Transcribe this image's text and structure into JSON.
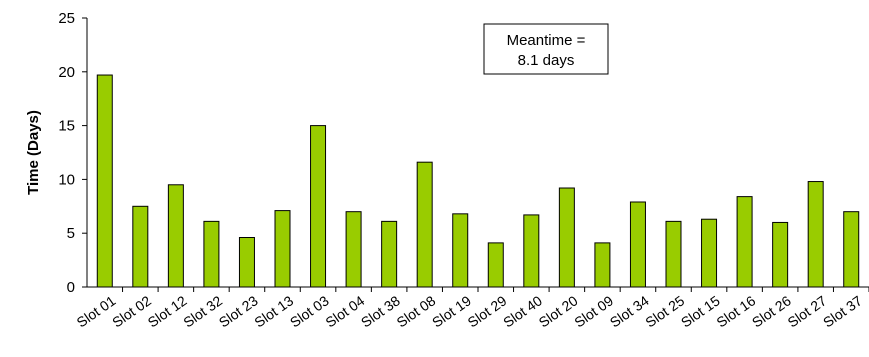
{
  "chart_data": {
    "type": "bar",
    "categories": [
      "Slot 01",
      "Slot 02",
      "Slot 12",
      "Slot 32",
      "Slot 23",
      "Slot 13",
      "Slot 03",
      "Slot 04",
      "Slot 38",
      "Slot 08",
      "Slot 19",
      "Slot 29",
      "Slot 40",
      "Slot 20",
      "Slot 09",
      "Slot 34",
      "Slot 25",
      "Slot 15",
      "Slot 16",
      "Slot 26",
      "Slot 27",
      "Slot 37"
    ],
    "values": [
      19.7,
      7.5,
      9.5,
      6.1,
      4.6,
      7.1,
      15.0,
      7.0,
      6.1,
      11.6,
      6.8,
      4.1,
      6.7,
      9.2,
      4.1,
      7.9,
      6.1,
      6.3,
      8.4,
      6.0,
      9.8,
      7.0
    ],
    "title": "",
    "xlabel": "",
    "ylabel": "Time (Days)",
    "ylim": [
      0,
      25
    ],
    "yticks": [
      0,
      5,
      10,
      15,
      20,
      25
    ],
    "grid": false,
    "legend": "none",
    "annotation": {
      "line1": "Meantime =",
      "line2": "8.1 days"
    },
    "colors": {
      "bar_fill": "#99cc00",
      "bar_stroke": "#000000",
      "axis": "#000000",
      "annotation_border": "#000000"
    }
  }
}
